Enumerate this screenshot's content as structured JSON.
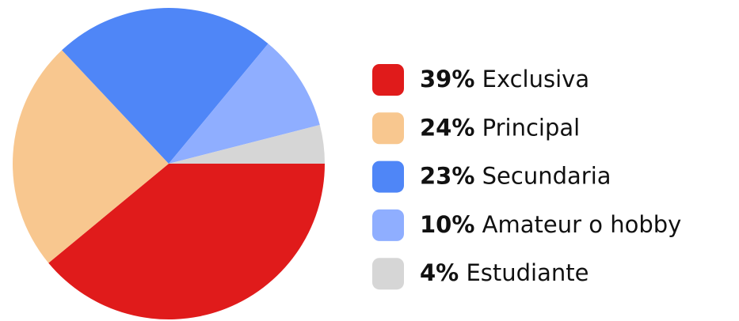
{
  "chart_data": {
    "type": "pie",
    "categories": [
      "Exclusiva",
      "Principal",
      "Secundaria",
      "Amateur o hobby",
      "Estudiante"
    ],
    "values": [
      39,
      24,
      23,
      10,
      4
    ],
    "value_labels": [
      "39%",
      "24%",
      "23%",
      "10%",
      "4%"
    ],
    "colors": [
      "#e01b1b",
      "#f8c78f",
      "#4f86f7",
      "#8faeff",
      "#d6d6d6"
    ],
    "legend": "right"
  }
}
